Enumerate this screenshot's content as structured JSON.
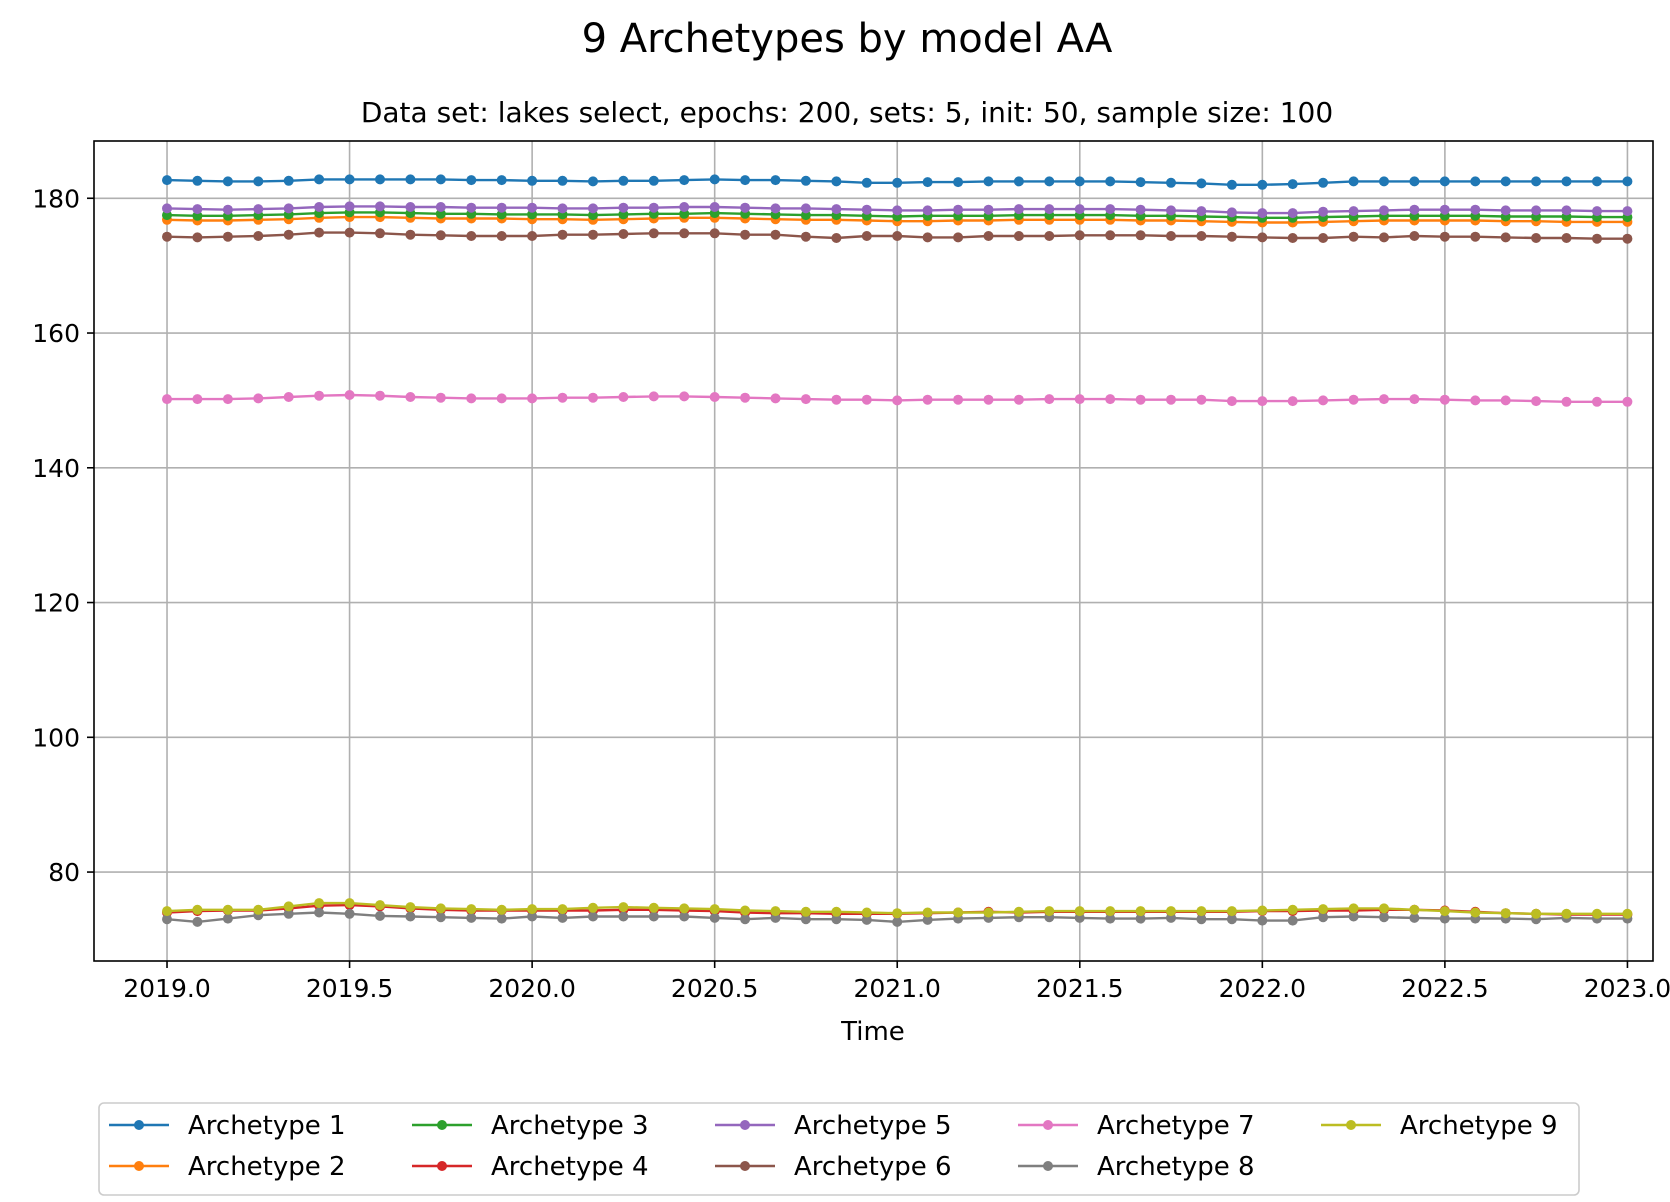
{
  "chart_data": {
    "type": "line",
    "title": "9 Archetypes by model AA",
    "subtitle": "Data set: lakes select, epochs: 200, sets: 5, init: 50, sample size: 100",
    "xlabel": "Time",
    "ylabel": "",
    "xlim": [
      2018.8,
      2023.07
    ],
    "ylim": [
      66.8,
      188.5
    ],
    "xticks": [
      2019.0,
      2019.5,
      2020.0,
      2020.5,
      2021.0,
      2021.5,
      2022.0,
      2022.5,
      2023.0
    ],
    "xtick_labels": [
      "2019.0",
      "2019.5",
      "2020.0",
      "2020.5",
      "2021.0",
      "2021.5",
      "2022.0",
      "2022.5",
      "2023.0"
    ],
    "yticks": [
      80,
      100,
      120,
      140,
      160,
      180
    ],
    "ytick_labels": [
      "80",
      "100",
      "120",
      "140",
      "160",
      "180"
    ],
    "grid": true,
    "legend_position": "bottom-center",
    "x_start": 2019.0,
    "x_step": 0.08333,
    "series": [
      {
        "name": "Archetype 1",
        "color": "#1f77b4",
        "values": [
          182.7,
          182.6,
          182.5,
          182.5,
          182.6,
          182.8,
          182.8,
          182.8,
          182.8,
          182.8,
          182.7,
          182.7,
          182.6,
          182.6,
          182.5,
          182.6,
          182.6,
          182.7,
          182.8,
          182.7,
          182.7,
          182.6,
          182.5,
          182.3,
          182.3,
          182.4,
          182.4,
          182.5,
          182.5,
          182.5,
          182.5,
          182.5,
          182.4,
          182.3,
          182.2,
          182.0,
          182.0,
          182.1,
          182.3,
          182.5,
          182.5,
          182.5,
          182.5,
          182.5,
          182.5,
          182.5,
          182.5,
          182.5,
          182.5
        ]
      },
      {
        "name": "Archetype 2",
        "color": "#ff7f0e",
        "values": [
          176.8,
          176.7,
          176.7,
          176.8,
          176.9,
          177.1,
          177.2,
          177.2,
          177.1,
          177.0,
          177.0,
          177.0,
          176.9,
          176.9,
          176.8,
          176.9,
          177.0,
          177.1,
          177.1,
          177.0,
          176.9,
          176.8,
          176.8,
          176.7,
          176.6,
          176.6,
          176.7,
          176.7,
          176.8,
          176.8,
          176.8,
          176.8,
          176.7,
          176.7,
          176.6,
          176.5,
          176.4,
          176.4,
          176.5,
          176.6,
          176.7,
          176.7,
          176.7,
          176.7,
          176.6,
          176.6,
          176.5,
          176.5,
          176.5
        ]
      },
      {
        "name": "Archetype 3",
        "color": "#2ca02c",
        "values": [
          177.5,
          177.4,
          177.4,
          177.5,
          177.6,
          177.8,
          177.9,
          177.9,
          177.8,
          177.7,
          177.7,
          177.6,
          177.6,
          177.6,
          177.5,
          177.6,
          177.7,
          177.7,
          177.8,
          177.7,
          177.6,
          177.5,
          177.5,
          177.4,
          177.3,
          177.4,
          177.4,
          177.4,
          177.5,
          177.5,
          177.5,
          177.5,
          177.4,
          177.4,
          177.3,
          177.2,
          177.1,
          177.1,
          177.2,
          177.3,
          177.4,
          177.4,
          177.4,
          177.4,
          177.3,
          177.3,
          177.3,
          177.2,
          177.2
        ]
      },
      {
        "name": "Archetype 4",
        "color": "#d62728",
        "values": [
          74.0,
          74.2,
          74.3,
          74.3,
          74.6,
          75.0,
          75.1,
          74.9,
          74.6,
          74.4,
          74.3,
          74.3,
          74.3,
          74.3,
          74.3,
          74.4,
          74.4,
          74.3,
          74.2,
          74.0,
          73.9,
          73.9,
          73.8,
          73.8,
          73.8,
          73.9,
          74.0,
          74.1,
          74.0,
          74.1,
          74.1,
          74.1,
          74.1,
          74.1,
          74.1,
          74.1,
          74.2,
          74.2,
          74.3,
          74.3,
          74.4,
          74.4,
          74.3,
          74.1,
          73.9,
          73.8,
          73.7,
          73.7,
          73.7
        ]
      },
      {
        "name": "Archetype 5",
        "color": "#9467bd",
        "values": [
          178.5,
          178.4,
          178.3,
          178.4,
          178.5,
          178.7,
          178.8,
          178.8,
          178.7,
          178.7,
          178.6,
          178.6,
          178.6,
          178.5,
          178.5,
          178.6,
          178.6,
          178.7,
          178.7,
          178.6,
          178.5,
          178.5,
          178.4,
          178.3,
          178.2,
          178.2,
          178.3,
          178.3,
          178.4,
          178.4,
          178.4,
          178.4,
          178.3,
          178.2,
          178.1,
          177.9,
          177.8,
          177.8,
          178.0,
          178.1,
          178.2,
          178.3,
          178.3,
          178.3,
          178.2,
          178.2,
          178.2,
          178.1,
          178.1
        ]
      },
      {
        "name": "Archetype 6",
        "color": "#8c564b",
        "values": [
          174.3,
          174.2,
          174.3,
          174.4,
          174.6,
          174.9,
          174.9,
          174.8,
          174.6,
          174.5,
          174.4,
          174.4,
          174.4,
          174.6,
          174.6,
          174.7,
          174.8,
          174.8,
          174.8,
          174.6,
          174.6,
          174.3,
          174.1,
          174.4,
          174.4,
          174.2,
          174.2,
          174.4,
          174.4,
          174.4,
          174.5,
          174.5,
          174.5,
          174.4,
          174.4,
          174.3,
          174.2,
          174.1,
          174.1,
          174.3,
          174.2,
          174.4,
          174.3,
          174.3,
          174.2,
          174.1,
          174.1,
          174.0,
          174.0
        ]
      },
      {
        "name": "Archetype 7",
        "color": "#e377c2",
        "values": [
          150.2,
          150.2,
          150.2,
          150.3,
          150.5,
          150.7,
          150.8,
          150.7,
          150.5,
          150.4,
          150.3,
          150.3,
          150.3,
          150.4,
          150.4,
          150.5,
          150.6,
          150.6,
          150.5,
          150.4,
          150.3,
          150.2,
          150.1,
          150.1,
          150.0,
          150.1,
          150.1,
          150.1,
          150.1,
          150.2,
          150.2,
          150.2,
          150.1,
          150.1,
          150.1,
          149.9,
          149.9,
          149.9,
          150.0,
          150.1,
          150.2,
          150.2,
          150.1,
          150.0,
          150.0,
          149.9,
          149.8,
          149.8,
          149.8
        ]
      },
      {
        "name": "Archetype 8",
        "color": "#7f7f7f",
        "values": [
          73.0,
          72.6,
          73.1,
          73.6,
          73.8,
          74.0,
          73.8,
          73.5,
          73.4,
          73.3,
          73.2,
          73.1,
          73.4,
          73.2,
          73.4,
          73.4,
          73.4,
          73.4,
          73.2,
          73.0,
          73.2,
          73.0,
          73.0,
          72.9,
          72.6,
          72.9,
          73.1,
          73.2,
          73.3,
          73.3,
          73.2,
          73.1,
          73.1,
          73.2,
          73.0,
          73.0,
          72.8,
          72.8,
          73.3,
          73.4,
          73.3,
          73.2,
          73.1,
          73.1,
          73.1,
          73.0,
          73.2,
          73.1,
          73.1
        ]
      },
      {
        "name": "Archetype 9",
        "color": "#bcbd22",
        "values": [
          74.2,
          74.4,
          74.4,
          74.4,
          74.9,
          75.4,
          75.4,
          75.1,
          74.8,
          74.6,
          74.5,
          74.4,
          74.5,
          74.5,
          74.7,
          74.8,
          74.7,
          74.6,
          74.5,
          74.3,
          74.2,
          74.1,
          74.1,
          74.0,
          73.9,
          74.0,
          74.0,
          74.0,
          74.1,
          74.2,
          74.2,
          74.2,
          74.2,
          74.2,
          74.2,
          74.2,
          74.3,
          74.4,
          74.5,
          74.6,
          74.6,
          74.4,
          74.2,
          74.0,
          73.9,
          73.8,
          73.8,
          73.8,
          73.8
        ]
      }
    ]
  }
}
